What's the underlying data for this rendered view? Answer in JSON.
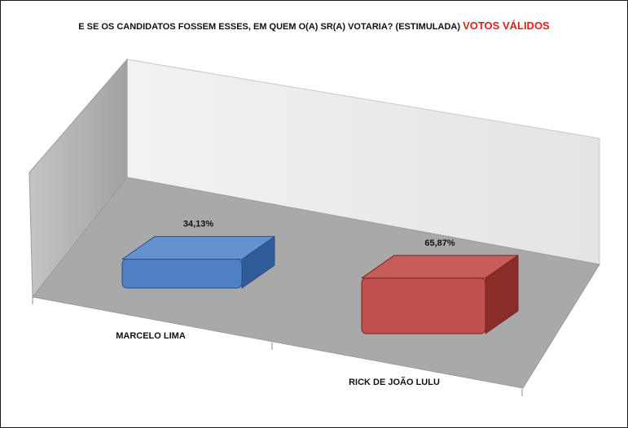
{
  "title": {
    "main": "E SE OS CANDIDATOS FOSSEM ESSES, EM QUEM O(A) SR(A) VOTARIA? (ESTIMULADA)",
    "highlight": "VOTOS VÁLIDOS"
  },
  "colors": {
    "highlight": "#e0201c",
    "series_blue": "#4f80c3",
    "series_red": "#c0504d",
    "wall": "#e8e8e8",
    "floor": "#a8a8a8"
  },
  "chart_data": {
    "type": "bar",
    "style": "3d",
    "categories": [
      "MARCELO LIMA",
      "RICK DE JOÃO LULU"
    ],
    "values": [
      34.13,
      65.87
    ],
    "data_labels": [
      "34,13%",
      "65,87%"
    ],
    "unit": "%",
    "ylim": [
      0,
      100
    ],
    "grid": false,
    "legend": "none"
  }
}
